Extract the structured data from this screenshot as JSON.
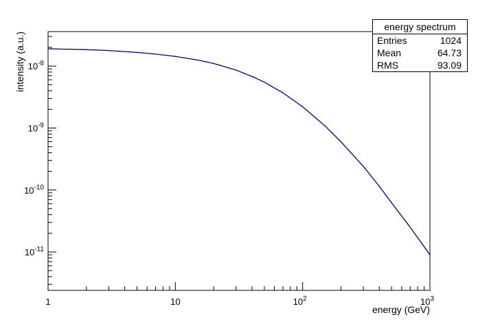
{
  "chart_data": {
    "type": "line",
    "title": "energy spectrum",
    "xlabel": "energy (GeV)",
    "ylabel": "intensity (a.u.)",
    "x_scale": "log",
    "y_scale": "log",
    "xlim": [
      1,
      1000
    ],
    "ylim": [
      2.4e-12,
      3.6e-08
    ],
    "x_ticks": [
      {
        "value": 1,
        "base": "1",
        "exp": ""
      },
      {
        "value": 10,
        "base": "10",
        "exp": ""
      },
      {
        "value": 100,
        "base": "10",
        "exp": "2"
      },
      {
        "value": 1000,
        "base": "10",
        "exp": "3"
      }
    ],
    "y_ticks": [
      {
        "value": 1e-08,
        "base": "10",
        "exp": "-8"
      },
      {
        "value": 1e-09,
        "base": "10",
        "exp": "-9"
      },
      {
        "value": 1e-10,
        "base": "10",
        "exp": "-10"
      },
      {
        "value": 1e-11,
        "base": "10",
        "exp": "-11"
      }
    ],
    "grid": false,
    "line_color": "#000080",
    "series": [
      {
        "x": [
          1,
          2,
          3,
          5,
          7,
          10,
          15,
          20,
          30,
          40,
          50,
          70,
          100,
          150,
          200,
          300,
          400,
          500,
          700,
          1000
        ],
        "y": [
          1.9e-08,
          1.84e-08,
          1.78e-08,
          1.66e-08,
          1.56e-08,
          1.43e-08,
          1.25e-08,
          1.1e-08,
          8.6e-09,
          6.8e-09,
          5.5e-09,
          3.7e-09,
          2.2e-09,
          1.08e-09,
          6e-10,
          2.4e-10,
          1.15e-10,
          6.2e-11,
          2.5e-11,
          9e-12
        ]
      }
    ],
    "stats": {
      "title": "energy spectrum",
      "rows": [
        {
          "label": "Entries",
          "value": "1024"
        },
        {
          "label": "Mean",
          "value": "64.73"
        },
        {
          "label": "RMS",
          "value": "93.09"
        }
      ]
    }
  }
}
